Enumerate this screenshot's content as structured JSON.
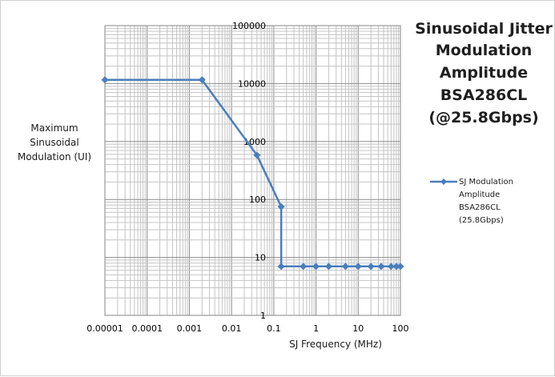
{
  "chart_data": {
    "type": "line",
    "title_lines": [
      "Sinusoidal Jitter",
      "Modulation",
      "Amplitude",
      "BSA286CL",
      "(@25.8Gbps)"
    ],
    "xlabel": "SJ Frequency (MHz)",
    "ylabel_lines": [
      "Maximum",
      "Sinusoidal",
      "Modulation (UI)"
    ],
    "x_scale": "log",
    "y_scale": "log",
    "xlim": [
      1e-05,
      100
    ],
    "ylim": [
      1,
      100000
    ],
    "x_tick_labels": [
      "0.00001",
      "0.0001",
      "0.001",
      "0.01",
      "0.1",
      "1",
      "10",
      "100"
    ],
    "y_tick_labels": [
      "1",
      "10",
      "100",
      "1000",
      "10000",
      "100000"
    ],
    "grid": true,
    "legend_position": "right",
    "series": [
      {
        "name_lines": [
          "SJ Modulation",
          "Amplitude",
          "BSA286CL",
          "(25.8Gbps)"
        ],
        "color": "#4a7ebb",
        "marker": "diamond",
        "x": [
          1e-05,
          0.002,
          0.04,
          0.15,
          0.15,
          0.15,
          0.5,
          1,
          2,
          5,
          10,
          20,
          35,
          60,
          80,
          100
        ],
        "y": [
          11600,
          11600,
          580,
          75,
          75,
          7,
          7,
          7,
          7,
          7,
          7,
          7,
          7,
          7,
          7,
          7
        ]
      }
    ]
  }
}
